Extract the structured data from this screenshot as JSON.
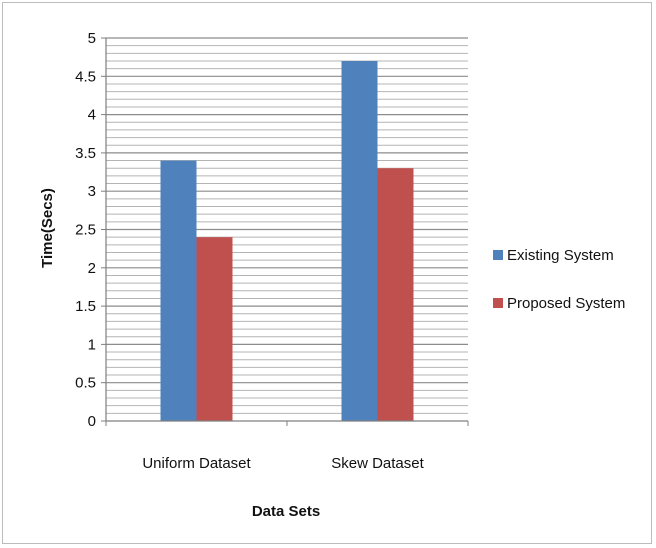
{
  "chart_data": {
    "type": "bar",
    "title": "",
    "xlabel": "Data Sets",
    "ylabel": "Time(Secs)",
    "categories": [
      "Uniform Dataset",
      "Skew Dataset"
    ],
    "series": [
      {
        "name": "Existing System",
        "values": [
          3.4,
          4.7
        ],
        "color": "#4F81BD"
      },
      {
        "name": "Proposed System",
        "values": [
          2.4,
          3.3
        ],
        "color": "#C0504D"
      }
    ],
    "ylim": [
      0,
      5
    ],
    "yticks": [
      "0",
      "0.5",
      "1",
      "1.5",
      "2",
      "2.5",
      "3",
      "3.5",
      "4",
      "4.5",
      "5"
    ],
    "grid": true,
    "legend_position": "right"
  }
}
